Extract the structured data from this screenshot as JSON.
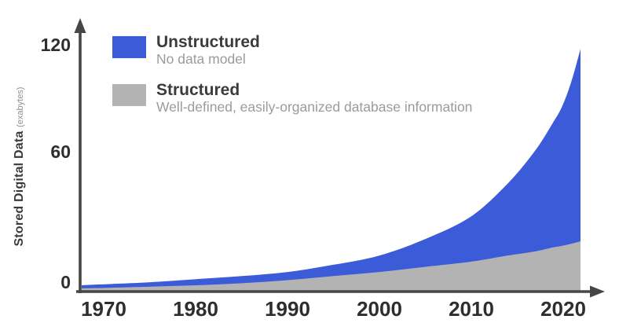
{
  "figure": {
    "background": "#ffffff",
    "axis_color": "#464646",
    "tick_color": "#2e2e2e"
  },
  "y_axis": {
    "title_main": "Stored Digital Data",
    "title_unit": "(exabytes)",
    "ticks": [
      "120",
      "60",
      "0"
    ]
  },
  "x_axis": {
    "ticks": [
      "1970",
      "1980",
      "1990",
      "2000",
      "2010",
      "2020"
    ]
  },
  "legend": {
    "items": [
      {
        "name": "Unstructured",
        "description": "No data model",
        "color": "#3B5BD9"
      },
      {
        "name": "Structured",
        "description": "Well-defined, easily-organized database information",
        "color": "#B3B3B3"
      }
    ]
  },
  "chart_data": {
    "type": "area",
    "stacked": true,
    "title": "",
    "xlabel": "",
    "ylabel": "Stored Digital Data (exabytes)",
    "grid": false,
    "legend_position": "top-left",
    "ylim": [
      0,
      120
    ],
    "xlim": [
      1967.5,
      2022
    ],
    "yticks": [
      0,
      60,
      120
    ],
    "xticks": [
      1970,
      1980,
      1990,
      2000,
      2010,
      2020
    ],
    "x": [
      1967.5,
      1970,
      1975,
      1980,
      1985,
      1990,
      1995,
      2000,
      2005,
      2010,
      2014,
      2017,
      2019,
      2020,
      2021,
      2022
    ],
    "series": [
      {
        "name": "Structured",
        "color": "#B3B3B3",
        "values": [
          1.0,
          1.2,
          1.8,
          2.5,
          3.5,
          5.0,
          7.0,
          9.0,
          11.5,
          14.0,
          17.0,
          19.0,
          21.0,
          21.8,
          22.8,
          24.0
        ]
      },
      {
        "name": "Unstructured",
        "color": "#3B5BD9",
        "values": [
          1.5,
          1.8,
          2.2,
          3.0,
          3.5,
          4.0,
          5.5,
          8.0,
          13.5,
          22.0,
          35.0,
          49.0,
          61.0,
          68.2,
          79.2,
          94.0
        ]
      }
    ]
  }
}
